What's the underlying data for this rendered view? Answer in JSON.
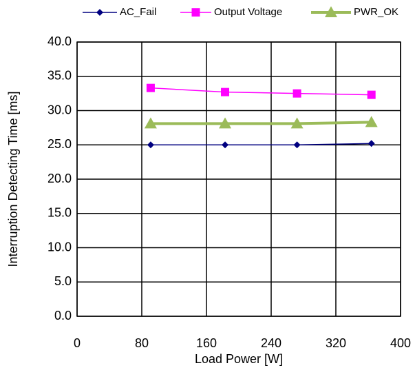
{
  "chart_data": {
    "type": "line",
    "x_label": "Load Power [W]",
    "y_label": "Interruption Detecting Time [ms]",
    "xlim": [
      0,
      400
    ],
    "xticks": [
      0,
      80,
      160,
      240,
      320,
      400
    ],
    "ylim": [
      0,
      40
    ],
    "yticks": [
      {
        "value": 0,
        "label": "0.0"
      },
      {
        "value": 5,
        "label": "5.0"
      },
      {
        "value": 10,
        "label": "10.0"
      },
      {
        "value": 15,
        "label": "15.0"
      },
      {
        "value": 20,
        "label": "20.0"
      },
      {
        "value": 25,
        "label": "25.0"
      },
      {
        "value": 30,
        "label": "30.0"
      },
      {
        "value": 35,
        "label": "35.0"
      },
      {
        "value": 40,
        "label": "40.0"
      }
    ],
    "grid": true,
    "x": [
      91,
      183,
      272,
      364
    ],
    "series": [
      {
        "name": "AC_Fail",
        "color": "#000080",
        "marker": "diamond",
        "line_width": 1.5,
        "values": [
          25.0,
          25.0,
          25.0,
          25.2
        ]
      },
      {
        "name": "Output Voltage",
        "color": "#ff00ff",
        "marker": "square",
        "line_width": 1.5,
        "values": [
          33.3,
          32.7,
          32.5,
          32.3
        ]
      },
      {
        "name": "PWR_OK",
        "color": "#9bbb59",
        "marker": "triangle",
        "line_width": 4,
        "values": [
          28.1,
          28.1,
          28.1,
          28.3
        ]
      }
    ]
  }
}
